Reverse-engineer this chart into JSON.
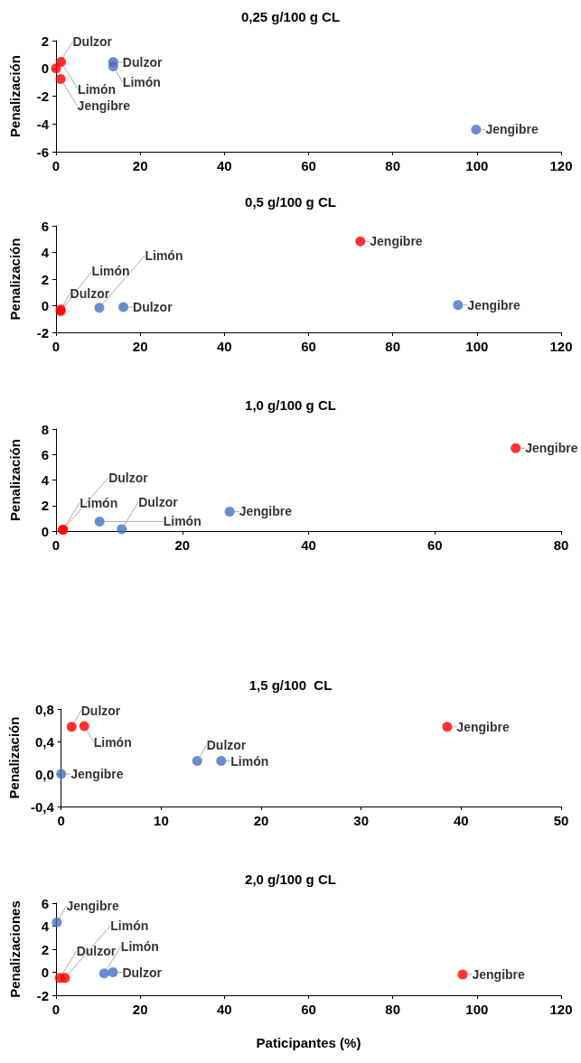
{
  "chart_data": [
    {
      "type": "scatter",
      "title": "0,25 g/100 g CL",
      "ylabel": "Penalización",
      "xlim": [
        0,
        120
      ],
      "xticks": [
        0,
        20,
        40,
        60,
        80,
        100,
        120
      ],
      "ylim": [
        -6,
        2
      ],
      "yticks": [
        -6,
        -4,
        -2,
        0,
        2
      ],
      "marker": "circle",
      "series": [
        {
          "color": "#ff0000",
          "x": [
            0,
            1.2,
            1.1
          ],
          "values": [
            0,
            0.47,
            -0.76
          ],
          "value_labels": [
            "Dulzor",
            "Limón",
            "Jengibre"
          ]
        },
        {
          "color": "#4472c4",
          "x": [
            13.6,
            13.6,
            99.8
          ],
          "values": [
            0.45,
            0.15,
            -4.4
          ],
          "value_labels": [
            "Dulzor",
            "Limón",
            "Jengibre"
          ]
        }
      ]
    },
    {
      "type": "scatter",
      "title": "0,5 g/100 g CL",
      "ylabel": "Penalización",
      "xlim": [
        0,
        120
      ],
      "xticks": [
        0,
        20,
        40,
        60,
        80,
        100,
        120
      ],
      "ylim": [
        -2,
        6
      ],
      "yticks": [
        -2,
        0,
        2,
        4,
        6
      ],
      "marker": "circle",
      "series": [
        {
          "color": "#ff0000",
          "x": [
            1.1,
            1.1,
            72.3
          ],
          "values": [
            -0.28,
            -0.4,
            4.83
          ],
          "value_labels": [
            "Dulzor",
            "Limón",
            "Jengibre"
          ]
        },
        {
          "color": "#4472c4",
          "x": [
            10.3,
            16,
            95.5
          ],
          "values": [
            -0.15,
            -0.1,
            0.05
          ],
          "value_labels": [
            "Limón",
            "Dulzor",
            "Jengibre"
          ]
        }
      ]
    },
    {
      "type": "scatter",
      "title": "1,0 g/100 g CL",
      "ylabel": "Penalización",
      "xlim": [
        0,
        80
      ],
      "xticks": [
        0,
        20,
        40,
        60,
        80
      ],
      "ylim": [
        0,
        8
      ],
      "yticks": [
        0,
        2,
        4,
        6,
        8
      ],
      "marker": "circle",
      "series": [
        {
          "color": "#ff0000",
          "x": [
            1.1,
            1.1,
            72.8
          ],
          "values": [
            0.1,
            0.1,
            6.5
          ],
          "value_labels": [
            "Limón",
            "Dulzor",
            "Jengibre"
          ]
        },
        {
          "color": "#4472c4",
          "x": [
            6.9,
            10.4,
            27.5
          ],
          "values": [
            0.75,
            0.15,
            1.53
          ],
          "value_labels": [
            "Limón",
            "Dulzor",
            "Jengibre"
          ]
        }
      ]
    },
    {
      "type": "scatter",
      "title": "1,5 g/100  CL",
      "ylabel": "Penalización",
      "xlim": [
        0,
        50
      ],
      "xticks": [
        0,
        10,
        20,
        30,
        40,
        50
      ],
      "ylim": [
        -0.4,
        0.8
      ],
      "yticks": [
        {
          "value": -0.4,
          "label": "-0,4"
        },
        {
          "value": 0,
          "label": "0,0"
        },
        {
          "value": 0.4,
          "label": "0,4"
        },
        {
          "value": 0.8,
          "label": "0,8"
        }
      ],
      "marker": "circle",
      "series": [
        {
          "color": "#ff0000",
          "x": [
            1.04,
            2.3,
            38.6
          ],
          "values": [
            0.58,
            0.59,
            0.58
          ],
          "value_labels": [
            "Dulzor",
            "Limón",
            "Jengibre"
          ]
        },
        {
          "color": "#4472c4",
          "x": [
            0,
            13.6,
            16
          ],
          "values": [
            0,
            0.16,
            0.16
          ],
          "value_labels": [
            "Jengibre",
            "Dulzor",
            "Limón"
          ]
        }
      ]
    },
    {
      "type": "scatter",
      "title": "2,0 g/100 g CL",
      "xlabel": "Paticipantes (%)",
      "ylabel": "Penalizaciones",
      "xlim": [
        0,
        120
      ],
      "xticks": [
        0,
        20,
        40,
        60,
        80,
        100,
        120
      ],
      "ylim": [
        -2,
        6
      ],
      "yticks": [
        -2,
        0,
        2,
        4,
        6
      ],
      "marker": "circle",
      "series": [
        {
          "color": "#ff0000",
          "x": [
            0.9,
            2.1,
            96.6
          ],
          "values": [
            -0.5,
            -0.5,
            -0.2
          ],
          "value_labels": [
            "Dulzor",
            "Limón",
            "Jengibre"
          ]
        },
        {
          "color": "#4472c4",
          "x": [
            0.2,
            11.45,
            13.5
          ],
          "values": [
            4.34,
            -0.1,
            0
          ],
          "value_labels": [
            "Jengibre",
            "Limón",
            "Dulzor"
          ]
        }
      ]
    }
  ]
}
